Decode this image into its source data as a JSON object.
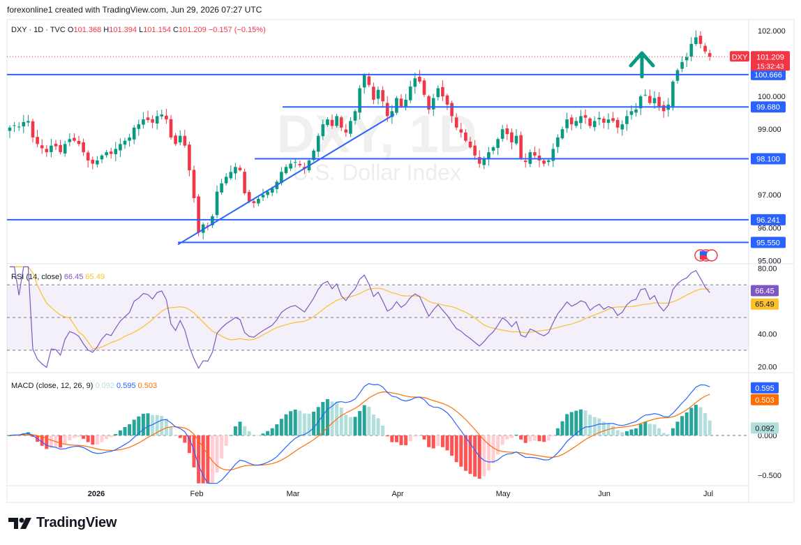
{
  "attribution": "forexonline1 created with TradingView.com, Jun 29, 2026 07:27 UTC",
  "brand": "TradingView",
  "colors": {
    "up": "#089981",
    "down": "#f23645",
    "level": "#2962ff",
    "rsi": "#7e57c2",
    "rsi_ma": "#fbc02d",
    "macd": "#2962ff",
    "signal": "#ff6d00",
    "price_tag": "#f23645",
    "arrow": "#089981"
  },
  "legend": {
    "symbol": "DXY · 1D · TVC",
    "o_label": "O",
    "o": "101.368",
    "h_label": "H",
    "h": "101.394",
    "l_label": "L",
    "l": "101.154",
    "c_label": "C",
    "c": "101.209",
    "change": "−0.157 (−0.15%)"
  },
  "watermark": {
    "symbol": "DXY, 1D",
    "name": "U.S. Dollar Index"
  },
  "price_tag": {
    "symbol": "DXY",
    "price": "101.209",
    "countdown": "15:32:43"
  },
  "levels": [
    {
      "value": 100.666,
      "label": "100.666"
    },
    {
      "value": 99.68,
      "label": "99.680"
    },
    {
      "value": 98.1,
      "label": "98.100"
    },
    {
      "value": 96.241,
      "label": "96.241"
    },
    {
      "value": 95.55,
      "label": "95.550"
    }
  ],
  "rsi": {
    "label": "RSI (14, close)",
    "value": "66.45",
    "ma": "65.49"
  },
  "macd": {
    "label": "MACD (close, 12, 26, 9)",
    "hist": "0.092",
    "macd": "0.595",
    "signal": "0.503"
  },
  "chart_data": [
    {
      "type": "candlestick",
      "series_name": "DXY",
      "x_axis": [
        "2026",
        "Feb",
        "Mar",
        "Apr",
        "May",
        "Jun",
        "Jul"
      ],
      "y_ticks": [
        "102.000",
        "100.000",
        "99.000",
        "97.000",
        "96.000",
        "95.000"
      ],
      "ylim": [
        94.9,
        102.3
      ],
      "start_date": "2025-12-01",
      "closes": [
        99.05,
        99.12,
        99.08,
        99.22,
        99.25,
        98.75,
        98.55,
        98.42,
        98.3,
        98.5,
        98.48,
        98.3,
        98.55,
        98.7,
        98.65,
        98.55,
        98.3,
        98.05,
        97.95,
        98.05,
        98.2,
        98.3,
        98.25,
        98.4,
        98.55,
        98.65,
        98.75,
        99.05,
        99.15,
        99.3,
        99.28,
        99.2,
        99.4,
        99.45,
        99.3,
        98.75,
        98.55,
        98.8,
        98.5,
        97.75,
        96.9,
        95.85,
        96.1,
        96.05,
        96.35,
        97.1,
        97.35,
        97.55,
        97.7,
        97.85,
        97.75,
        97.05,
        96.8,
        96.75,
        96.88,
        97.0,
        97.1,
        97.2,
        97.4,
        97.7,
        97.85,
        97.95,
        98.0,
        97.9,
        97.8,
        98.05,
        98.35,
        98.8,
        99.15,
        99.3,
        99.1,
        99.4,
        99.05,
        98.9,
        99.25,
        99.55,
        100.25,
        100.65,
        100.35,
        99.9,
        100.2,
        99.85,
        99.4,
        99.55,
        99.95,
        99.7,
        99.9,
        100.3,
        100.55,
        100.45,
        100.05,
        99.6,
        99.95,
        100.25,
        100.0,
        99.75,
        99.4,
        99.05,
        98.9,
        98.65,
        98.45,
        98.2,
        97.95,
        98.1,
        98.3,
        98.45,
        98.7,
        99.0,
        98.85,
        98.6,
        98.8,
        98.1,
        98.0,
        98.3,
        98.2,
        98.05,
        97.95,
        98.05,
        98.4,
        98.75,
        99.0,
        99.3,
        99.15,
        99.25,
        99.4,
        99.35,
        99.1,
        99.25,
        99.35,
        99.2,
        99.3,
        99.25,
        99.05,
        99.15,
        99.4,
        99.55,
        99.6,
        100.0,
        100.05,
        99.8,
        99.95,
        99.7,
        99.55,
        99.75,
        100.45,
        100.8,
        101.05,
        101.2,
        101.6,
        101.8,
        101.6,
        101.37,
        101.21
      ]
    },
    {
      "type": "line",
      "series_name": "RSI (14, close)",
      "y_ticks": [
        "80.00",
        "40.00",
        "20.00"
      ],
      "ylim": [
        18,
        82
      ]
    },
    {
      "type": "bar",
      "series_name": "MACD (close, 12, 26, 9)",
      "y_ticks": [
        "0.000",
        "−0.500"
      ],
      "ylim": [
        -0.62,
        0.75
      ]
    }
  ]
}
